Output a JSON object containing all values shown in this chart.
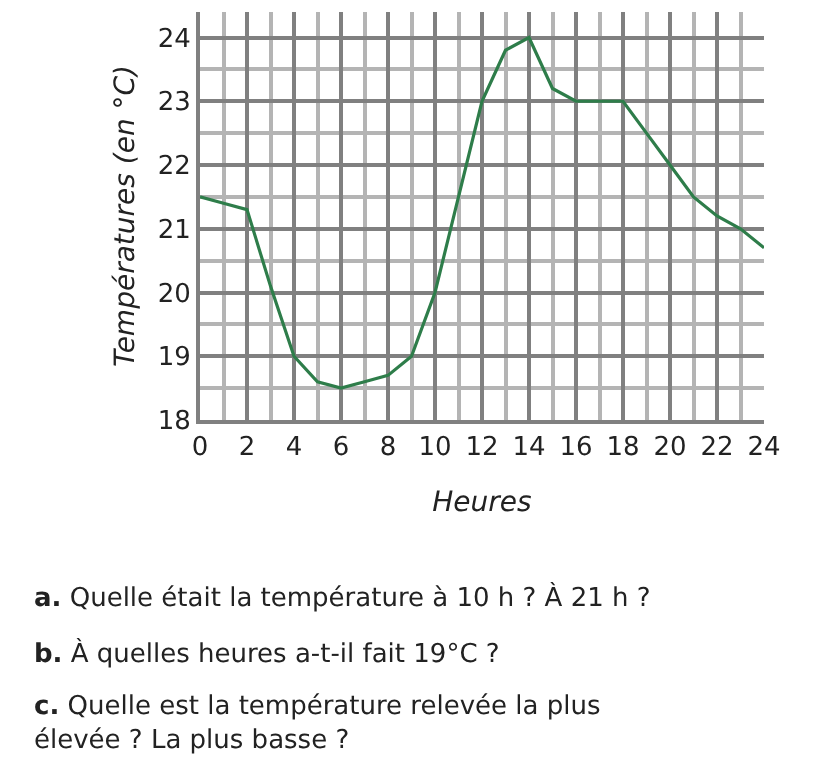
{
  "chart_data": {
    "type": "line",
    "xlabel": "Heures",
    "ylabel": "Températures (en °C)",
    "x": [
      0,
      1,
      2,
      3,
      4,
      5,
      6,
      7,
      8,
      9,
      10,
      11,
      12,
      13,
      14,
      15,
      16,
      17,
      18,
      19,
      20,
      21,
      22,
      23,
      24
    ],
    "series": [
      {
        "color": "#2e7d4a",
        "values": [
          21.5,
          21.4,
          21.3,
          20.1,
          19,
          18.6,
          18.5,
          18.6,
          18.7,
          19,
          20,
          21.5,
          23,
          23.8,
          24,
          23.2,
          23,
          23,
          23,
          22.5,
          22,
          21.5,
          21.2,
          21,
          20.7
        ]
      }
    ],
    "xlim": [
      0,
      24
    ],
    "xticks": [
      0,
      2,
      4,
      6,
      8,
      10,
      12,
      14,
      16,
      18,
      20,
      22,
      24
    ],
    "ylim": [
      18,
      24.4
    ],
    "yticks": [
      18,
      19,
      20,
      21,
      22,
      23,
      24
    ],
    "grid": true,
    "marker": "none",
    "line_style": "solid",
    "legend": false,
    "annotations": [
      "a. Quelle était la température à 10 h ? À 21 h ?",
      "b. À quelles heures a-t-il fait 19°C ?",
      "c. Quelle est la température relevée la plus élevée ? La plus basse ?"
    ]
  }
}
